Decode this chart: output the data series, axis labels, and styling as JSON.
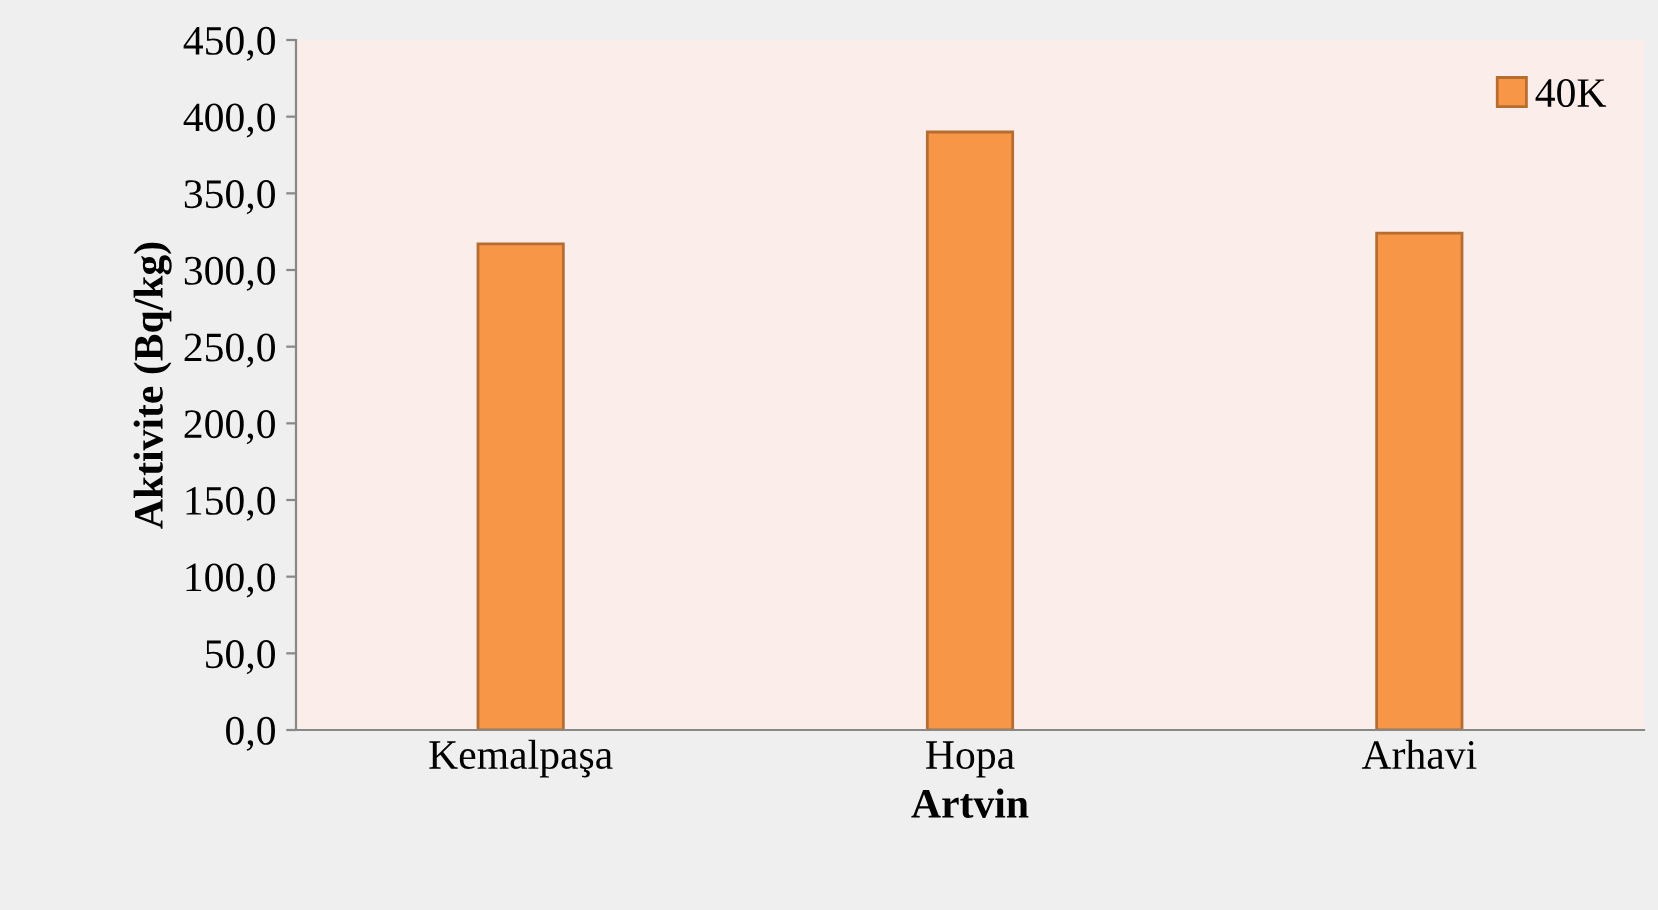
{
  "chart_data": {
    "type": "bar",
    "xlabel": "Artvin",
    "ylabel": "Aktivite (Bq/kg)",
    "categories": [
      "Kemalpaşa",
      "Hopa",
      "Arhavi"
    ],
    "series": [
      {
        "name": "40K",
        "color": "#f79646",
        "values": [
          317,
          390,
          324
        ]
      }
    ],
    "ylim": [
      0,
      450
    ],
    "yticks": [
      {
        "value": 0,
        "label": "0,0"
      },
      {
        "value": 50,
        "label": "50,0"
      },
      {
        "value": 100,
        "label": "100,0"
      },
      {
        "value": 150,
        "label": "150,0"
      },
      {
        "value": 200,
        "label": "200,0"
      },
      {
        "value": 250,
        "label": "250,0"
      },
      {
        "value": 300,
        "label": "300,0"
      },
      {
        "value": 350,
        "label": "350,0"
      },
      {
        "value": 400,
        "label": "400,0"
      },
      {
        "value": 450,
        "label": "450,0"
      }
    ],
    "grid": false,
    "legend": "top right"
  }
}
